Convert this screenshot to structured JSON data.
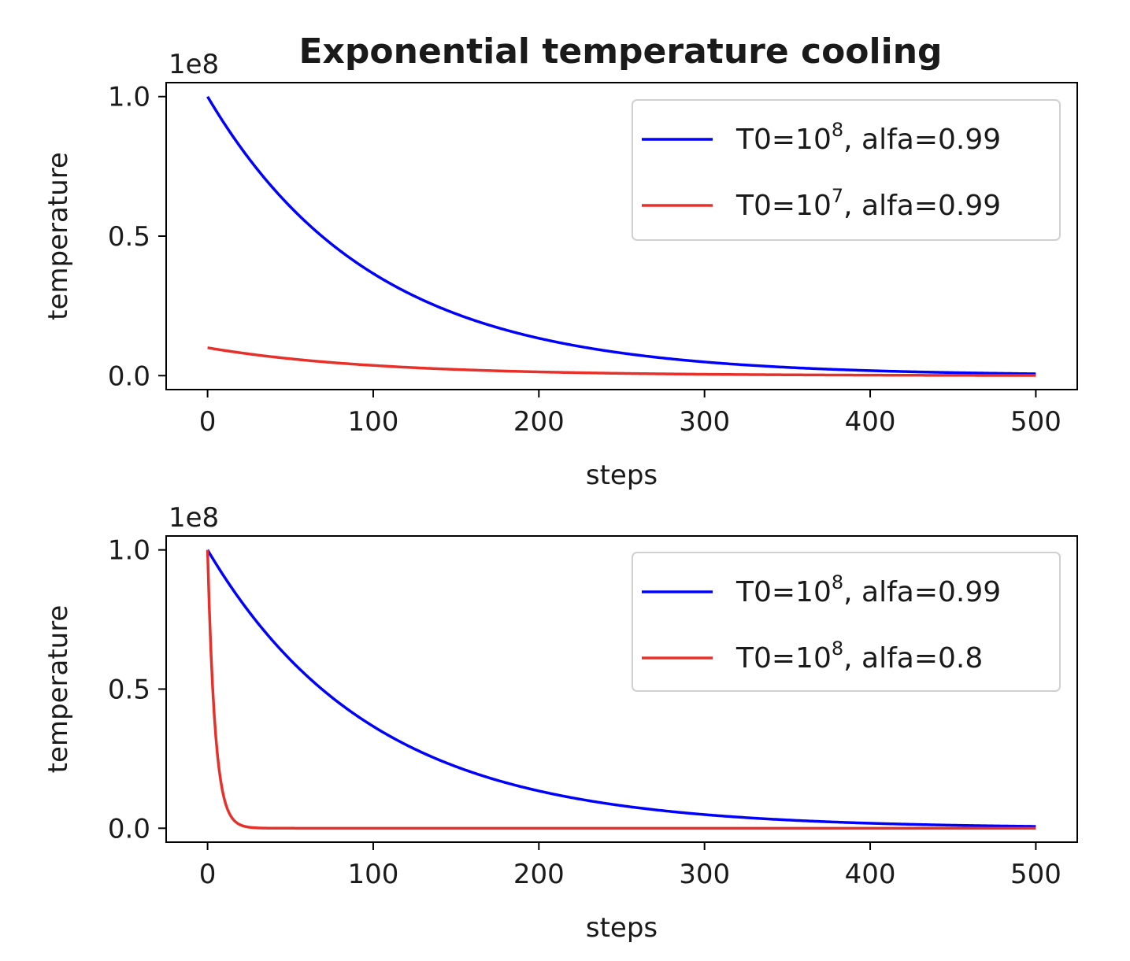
{
  "title": "Exponential temperature cooling",
  "colors": {
    "blue": "#0000ff",
    "red": "#e8302a"
  },
  "chart_data": [
    {
      "type": "line",
      "title": "Exponential temperature cooling",
      "xlabel": "steps",
      "ylabel": "temperature",
      "offset_text": "1e8",
      "xlim": [
        -25,
        525
      ],
      "ylim": [
        -0.05,
        1.05
      ],
      "y_scale": 100000000,
      "xticks": [
        0,
        100,
        200,
        300,
        400,
        500
      ],
      "xtick_labels": [
        "0",
        "100",
        "200",
        "300",
        "400",
        "500"
      ],
      "yticks": [
        0.0,
        0.5,
        1.0
      ],
      "ytick_labels": [
        "0.0",
        "0.5",
        "1.0"
      ],
      "legend_position": "upper right",
      "series": [
        {
          "label_main": "T0=10",
          "label_exp": "8",
          "label_tail": ", alfa=0.99",
          "color": "#0000ff",
          "T0": 100000000,
          "alpha": 0.99,
          "steps": [
            0,
            500
          ]
        },
        {
          "label_main": "T0=10",
          "label_exp": "7",
          "label_tail": ", alfa=0.99",
          "color": "#e8302a",
          "T0": 10000000,
          "alpha": 0.99,
          "steps": [
            0,
            500
          ]
        }
      ]
    },
    {
      "type": "line",
      "title": "",
      "xlabel": "steps",
      "ylabel": "temperature",
      "offset_text": "1e8",
      "xlim": [
        -25,
        525
      ],
      "ylim": [
        -0.05,
        1.05
      ],
      "y_scale": 100000000,
      "xticks": [
        0,
        100,
        200,
        300,
        400,
        500
      ],
      "xtick_labels": [
        "0",
        "100",
        "200",
        "300",
        "400",
        "500"
      ],
      "yticks": [
        0.0,
        0.5,
        1.0
      ],
      "ytick_labels": [
        "0.0",
        "0.5",
        "1.0"
      ],
      "legend_position": "upper right",
      "series": [
        {
          "label_main": "T0=10",
          "label_exp": "8",
          "label_tail": ", alfa=0.99",
          "color": "#0000ff",
          "T0": 100000000,
          "alpha": 0.99,
          "steps": [
            0,
            500
          ]
        },
        {
          "label_main": "T0=10",
          "label_exp": "8",
          "label_tail": ", alfa=0.8",
          "color": "#e8302a",
          "T0": 100000000,
          "alpha": 0.8,
          "steps": [
            0,
            500
          ]
        }
      ]
    }
  ]
}
